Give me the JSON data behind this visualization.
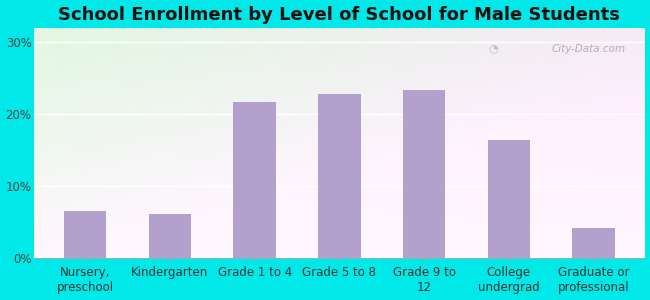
{
  "title": "School Enrollment by Level of School for Male Students",
  "categories": [
    "Nursery,\npreschool",
    "Kindergarten",
    "Grade 1 to 4",
    "Grade 5 to 8",
    "Grade 9 to\n12",
    "College\nundergrad",
    "Graduate or\nprofessional"
  ],
  "values": [
    6.5,
    6.2,
    21.7,
    22.8,
    23.3,
    16.4,
    4.2
  ],
  "bar_color": "#b3a0cc",
  "yticks": [
    0,
    10,
    20,
    30
  ],
  "ytick_labels": [
    "0%",
    "10%",
    "20%",
    "30%"
  ],
  "ylim": [
    0,
    32
  ],
  "outer_bg": "#00e8e8",
  "title_fontsize": 13,
  "tick_fontsize": 8.5,
  "watermark": "City-Data.com"
}
